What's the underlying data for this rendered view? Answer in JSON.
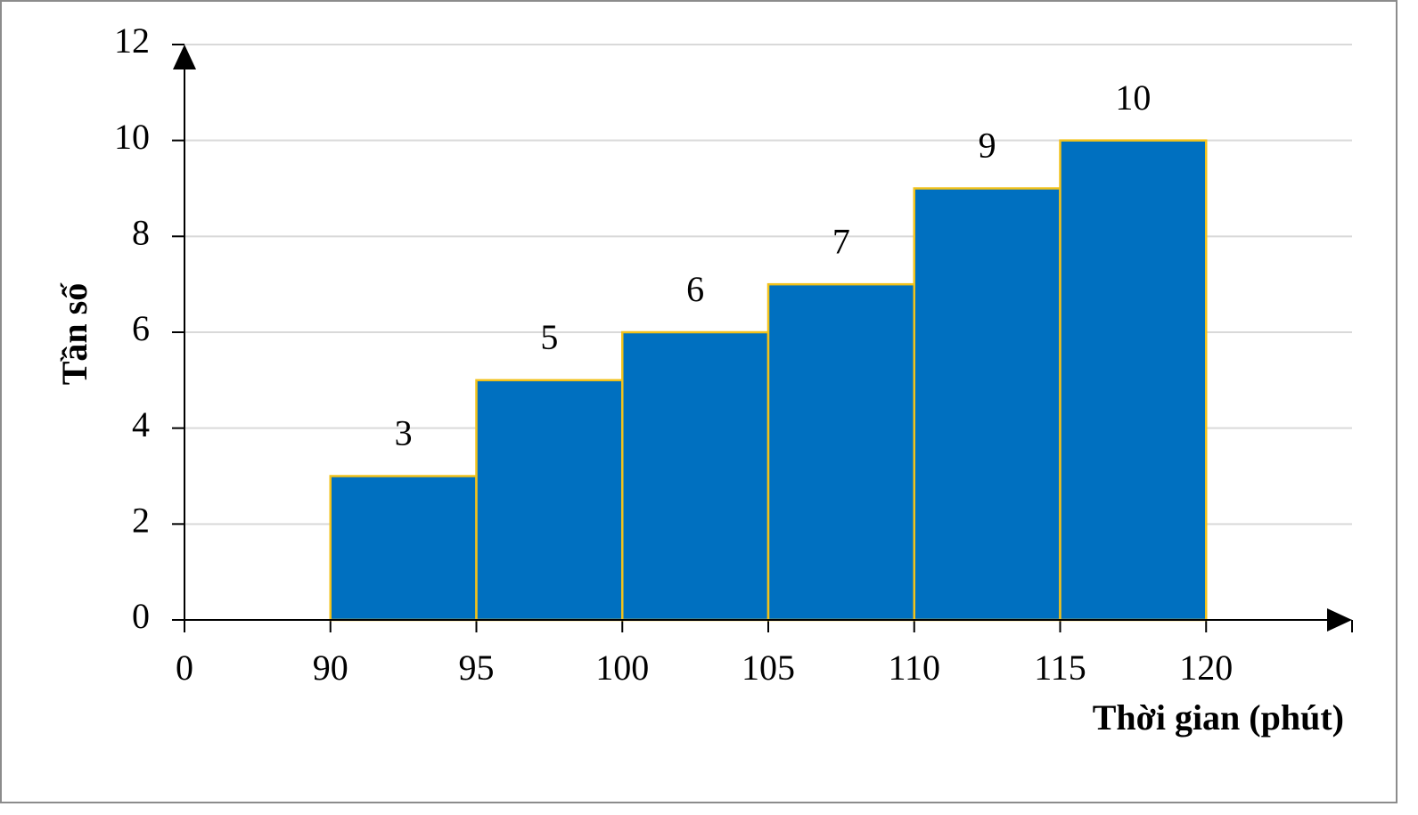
{
  "chart_data": {
    "type": "histogram",
    "x_label": "Thời gian (phút)",
    "y_label": "Tần số",
    "bins": [
      90,
      95,
      100,
      105,
      110,
      115,
      120
    ],
    "values": [
      3,
      5,
      6,
      7,
      9,
      10
    ],
    "color": "#0070c0",
    "edge_color": "#f2c21b",
    "xlim": [
      0,
      125
    ],
    "xticks": [
      0,
      90,
      95,
      100,
      105,
      110,
      115,
      120
    ],
    "x_axis_break": true,
    "ylim": [
      0,
      12
    ],
    "yticks": [
      0,
      2,
      4,
      6,
      8,
      10,
      12
    ],
    "grid": true
  }
}
